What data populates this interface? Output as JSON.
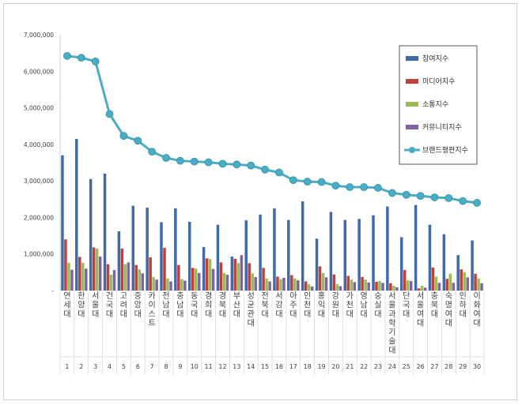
{
  "chart_data": {
    "type": "bar",
    "ylim": [
      0,
      7000000
    ],
    "yticks": [
      "-",
      "1,000,000",
      "2,000,000",
      "3,000,000",
      "4,000,000",
      "5,000,000",
      "6,000,000",
      "7,000,000"
    ],
    "grid": false,
    "legend_position": "right",
    "categories": [
      "연세대",
      "한양대",
      "서울대",
      "건국대",
      "고려대",
      "중앙대",
      "카이스트",
      "전남대",
      "충남대",
      "동국대",
      "경희대",
      "경북대",
      "부산대",
      "성균관대",
      "전북대",
      "서강대",
      "아주대",
      "인천대",
      "홍익대",
      "강원대",
      "가천대",
      "영남대",
      "숭실대",
      "서울과학기술대",
      "단국대",
      "서울여대",
      "충북대",
      "숙명여대",
      "인하대",
      "이화여대"
    ],
    "ranks": [
      "1",
      "2",
      "3",
      "4",
      "5",
      "6",
      "7",
      "8",
      "9",
      "10",
      "11",
      "12",
      "13",
      "14",
      "15",
      "16",
      "17",
      "18",
      "19",
      "20",
      "21",
      "22",
      "23",
      "24",
      "25",
      "26",
      "27",
      "28",
      "29",
      "30"
    ],
    "series": [
      {
        "name": "참여지수",
        "color": "#3f6ba8",
        "kind": "bar",
        "values": [
          3700000,
          4150000,
          3050000,
          3200000,
          1620000,
          2320000,
          2270000,
          1870000,
          2250000,
          1880000,
          1190000,
          1800000,
          930000,
          1920000,
          2080000,
          2250000,
          1930000,
          2440000,
          1420000,
          2150000,
          1930000,
          1960000,
          2060000,
          2300000,
          1460000,
          2340000,
          1800000,
          1540000,
          970000,
          1370000
        ]
      },
      {
        "name": "미디어지수",
        "color": "#c0403c",
        "kind": "bar",
        "values": [
          1400000,
          920000,
          1180000,
          720000,
          1150000,
          700000,
          910000,
          1170000,
          700000,
          620000,
          880000,
          770000,
          870000,
          750000,
          620000,
          380000,
          420000,
          250000,
          660000,
          440000,
          400000,
          370000,
          240000,
          200000,
          560000,
          60000,
          630000,
          320000,
          580000,
          460000
        ]
      },
      {
        "name": "소통지수",
        "color": "#9bbb59",
        "kind": "bar",
        "values": [
          760000,
          760000,
          1150000,
          430000,
          720000,
          580000,
          370000,
          330000,
          310000,
          600000,
          860000,
          480000,
          750000,
          470000,
          330000,
          310000,
          330000,
          170000,
          480000,
          180000,
          300000,
          300000,
          260000,
          130000,
          280000,
          130000,
          380000,
          460000,
          500000,
          330000
        ]
      },
      {
        "name": "커뮤니티지수",
        "color": "#8064a2",
        "kind": "bar",
        "values": [
          570000,
          600000,
          930000,
          560000,
          770000,
          470000,
          300000,
          250000,
          270000,
          480000,
          590000,
          430000,
          970000,
          370000,
          250000,
          350000,
          280000,
          110000,
          360000,
          120000,
          230000,
          220000,
          210000,
          90000,
          260000,
          80000,
          210000,
          210000,
          360000,
          200000
        ]
      },
      {
        "name": "브랜드평판지수",
        "color": "#4bacc6",
        "kind": "line",
        "values": [
          6420000,
          6370000,
          6270000,
          4830000,
          4230000,
          4100000,
          3800000,
          3630000,
          3550000,
          3530000,
          3510000,
          3470000,
          3450000,
          3420000,
          3310000,
          3230000,
          3020000,
          2980000,
          2970000,
          2870000,
          2830000,
          2830000,
          2810000,
          2670000,
          2620000,
          2590000,
          2550000,
          2530000,
          2450000,
          2400000
        ]
      }
    ]
  }
}
